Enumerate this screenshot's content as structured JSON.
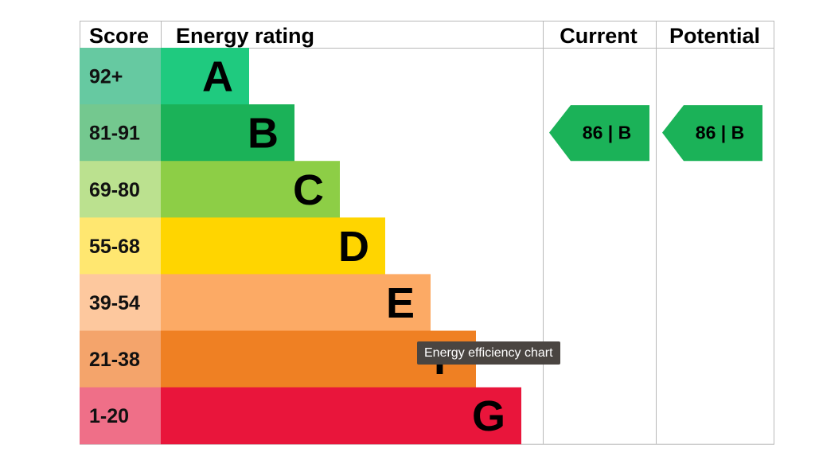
{
  "tooltip": "Energy efficiency chart",
  "headers": {
    "score": "Score",
    "energy_rating": "Energy rating",
    "current": "Current",
    "potential": "Potential"
  },
  "chart_data": {
    "type": "bar",
    "title": "",
    "categories": [
      "A",
      "B",
      "C",
      "D",
      "E",
      "F",
      "G"
    ],
    "score_ranges": [
      "92+",
      "81-91",
      "69-80",
      "55-68",
      "39-54",
      "21-38",
      "1-20"
    ],
    "band_colors": [
      "#1fca7f",
      "#1bb258",
      "#8dce46",
      "#ffd500",
      "#fcaa65",
      "#ef8023",
      "#e9153b"
    ],
    "score_colors": [
      "#66c9a1",
      "#74c88f",
      "#bbe18f",
      "#ffe770",
      "#fdc89e",
      "#f4a46b",
      "#ef6f88"
    ],
    "current": {
      "value": 86,
      "band": "B",
      "label": "86 | B",
      "color": "#1bb258"
    },
    "potential": {
      "value": 86,
      "band": "B",
      "label": "86 | B",
      "color": "#1bb258"
    }
  }
}
